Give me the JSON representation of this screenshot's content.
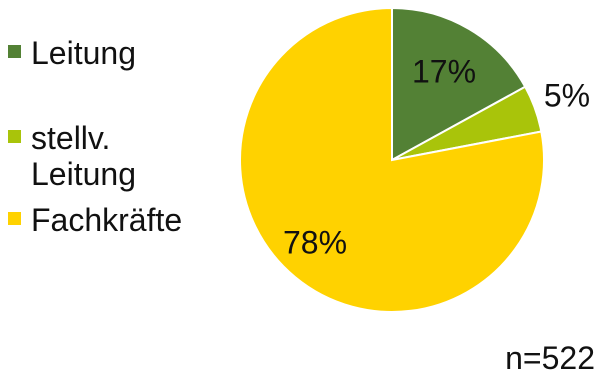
{
  "chart_data": {
    "type": "pie",
    "title": "",
    "categories": [
      "Leitung",
      "stellv. Leitung",
      "Fachkräfte"
    ],
    "values": [
      17,
      5,
      78
    ],
    "labels": [
      "17%",
      "5%",
      "78%"
    ],
    "colors": [
      "#538135",
      "#a9c40a",
      "#ffd200"
    ],
    "start_angle_deg": 0,
    "direction": "clockwise",
    "legend_position": "left",
    "label_positions": [
      "inside",
      "outside",
      "inside"
    ]
  },
  "legend": {
    "items": [
      {
        "label": "Leitung",
        "color": "#538135"
      },
      {
        "label": "stellv. Leitung",
        "color": "#a9c40a"
      },
      {
        "label": "Fachkräfte",
        "color": "#ffd200"
      }
    ]
  },
  "footnote": "n=522"
}
